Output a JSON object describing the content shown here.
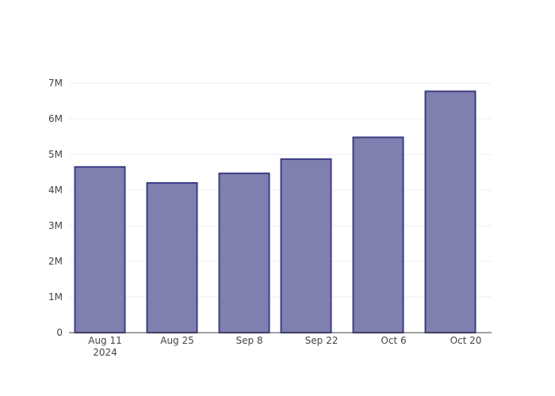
{
  "chart_data": {
    "type": "bar",
    "x": [
      "2024-08-10",
      "2024-08-24",
      "2024-09-07",
      "2024-09-19",
      "2024-10-03",
      "2024-10-17"
    ],
    "values": [
      4650000,
      4200000,
      4470000,
      4870000,
      5480000,
      6770000
    ],
    "ylim": [
      0,
      7000000
    ],
    "xlim": [
      "2024-08-04",
      "2024-10-25"
    ],
    "y_ticks": [
      {
        "value": 0,
        "label": "0"
      },
      {
        "value": 1000000,
        "label": "1M"
      },
      {
        "value": 2000000,
        "label": "2M"
      },
      {
        "value": 3000000,
        "label": "3M"
      },
      {
        "value": 4000000,
        "label": "4M"
      },
      {
        "value": 5000000,
        "label": "5M"
      },
      {
        "value": 6000000,
        "label": "6M"
      },
      {
        "value": 7000000,
        "label": "7M"
      }
    ],
    "x_ticks": [
      {
        "date": "2024-08-11",
        "label": "Aug 11",
        "sublabel": "2024"
      },
      {
        "date": "2024-08-25",
        "label": "Aug 25"
      },
      {
        "date": "2024-09-08",
        "label": "Sep 8"
      },
      {
        "date": "2024-09-22",
        "label": "Sep 22"
      },
      {
        "date": "2024-10-06",
        "label": "Oct 6"
      },
      {
        "date": "2024-10-20",
        "label": "Oct 20"
      }
    ],
    "bar_color": "#7f7fb0",
    "bar_edge_color": "#3d3d85",
    "grid": true,
    "legend": false
  }
}
